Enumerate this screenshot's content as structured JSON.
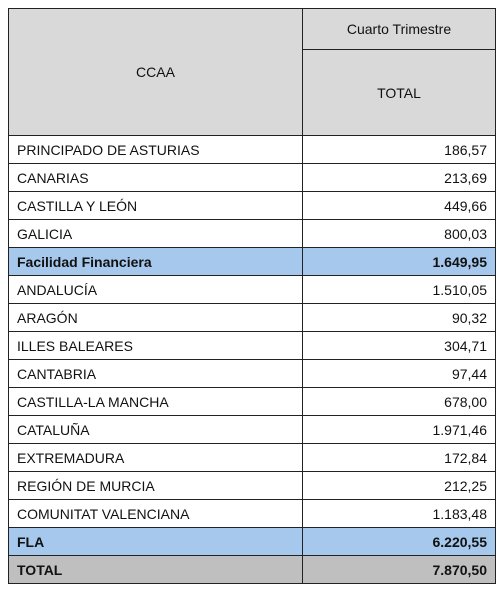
{
  "table": {
    "header": {
      "region": "CCAA",
      "period": "Cuarto Trimestre",
      "total": "TOTAL"
    },
    "rows": [
      [
        "PRINCIPADO DE ASTURIAS",
        "186,57"
      ],
      [
        "CANARIAS",
        "213,69"
      ],
      [
        "CASTILLA Y LEÓN",
        "449,66"
      ],
      [
        "GALICIA",
        "800,03"
      ],
      [
        "Facilidad Financiera",
        "1.649,95"
      ],
      [
        "ANDALUCÍA",
        "1.510,05"
      ],
      [
        "ARAGÓN",
        "90,32"
      ],
      [
        "ILLES BALEARES",
        "304,71"
      ],
      [
        "CANTABRIA",
        "97,44"
      ],
      [
        "CASTILLA-LA MANCHA",
        "678,00"
      ],
      [
        "CATALUÑA",
        "1.971,46"
      ],
      [
        "EXTREMADURA",
        "172,84"
      ],
      [
        "REGIÓN DE MURCIA",
        "212,25"
      ],
      [
        "COMUNITAT VALENCIANA",
        "1.183,48"
      ],
      [
        "FLA",
        "6.220,55"
      ],
      [
        "TOTAL",
        "7.870,50"
      ]
    ]
  }
}
